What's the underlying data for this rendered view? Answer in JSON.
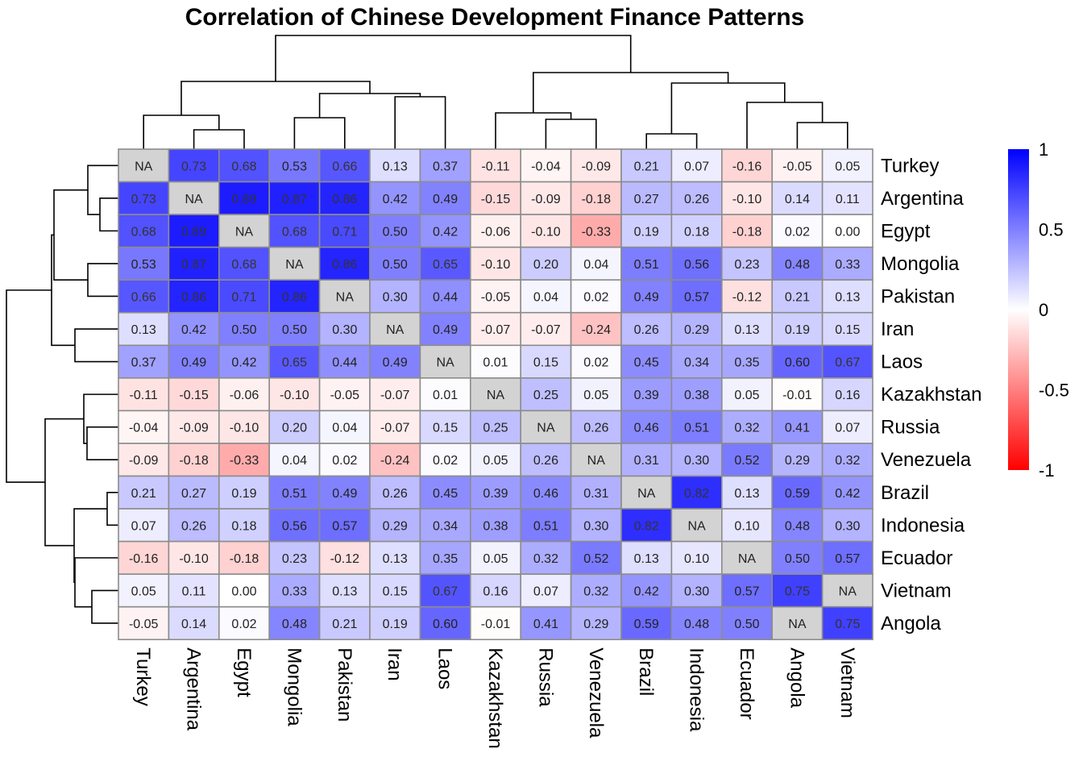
{
  "chart_data": {
    "type": "heatmap",
    "title": "Correlation of Chinese Development Finance Patterns",
    "rows": [
      "Turkey",
      "Argentina",
      "Egypt",
      "Mongolia",
      "Pakistan",
      "Iran",
      "Laos",
      "Kazakhstan",
      "Russia",
      "Venezuela",
      "Brazil",
      "Indonesia",
      "Ecuador",
      "Vietnam",
      "Angola"
    ],
    "columns": [
      "Turkey",
      "Argentina",
      "Egypt",
      "Mongolia",
      "Pakistan",
      "Iran",
      "Laos",
      "Kazakhstan",
      "Russia",
      "Venezuela",
      "Brazil",
      "Indonesia",
      "Ecuador",
      "Angola",
      "Vietnam"
    ],
    "values": [
      [
        null,
        0.73,
        0.68,
        0.53,
        0.66,
        0.13,
        0.37,
        -0.11,
        -0.04,
        -0.09,
        0.21,
        0.07,
        -0.16,
        -0.05,
        0.05
      ],
      [
        0.73,
        null,
        0.89,
        0.87,
        0.86,
        0.42,
        0.49,
        -0.15,
        -0.09,
        -0.18,
        0.27,
        0.26,
        -0.1,
        0.14,
        0.11
      ],
      [
        0.68,
        0.89,
        null,
        0.68,
        0.71,
        0.5,
        0.42,
        -0.06,
        -0.1,
        -0.33,
        0.19,
        0.18,
        -0.18,
        0.02,
        0.0
      ],
      [
        0.53,
        0.87,
        0.68,
        null,
        0.86,
        0.5,
        0.65,
        -0.1,
        0.2,
        0.04,
        0.51,
        0.56,
        0.23,
        0.48,
        0.33
      ],
      [
        0.66,
        0.86,
        0.71,
        0.86,
        null,
        0.3,
        0.44,
        -0.05,
        0.04,
        0.02,
        0.49,
        0.57,
        -0.12,
        0.21,
        0.13
      ],
      [
        0.13,
        0.42,
        0.5,
        0.5,
        0.3,
        null,
        0.49,
        -0.07,
        -0.07,
        -0.24,
        0.26,
        0.29,
        0.13,
        0.19,
        0.15
      ],
      [
        0.37,
        0.49,
        0.42,
        0.65,
        0.44,
        0.49,
        null,
        0.01,
        0.15,
        0.02,
        0.45,
        0.34,
        0.35,
        0.6,
        0.67
      ],
      [
        -0.11,
        -0.15,
        -0.06,
        -0.1,
        -0.05,
        -0.07,
        0.01,
        null,
        0.25,
        0.05,
        0.39,
        0.38,
        0.05,
        -0.01,
        0.16
      ],
      [
        -0.04,
        -0.09,
        -0.1,
        0.2,
        0.04,
        -0.07,
        0.15,
        0.25,
        null,
        0.26,
        0.46,
        0.51,
        0.32,
        0.41,
        0.07
      ],
      [
        -0.09,
        -0.18,
        -0.33,
        0.04,
        0.02,
        -0.24,
        0.02,
        0.05,
        0.26,
        null,
        0.31,
        0.3,
        0.52,
        0.29,
        0.32
      ],
      [
        0.21,
        0.27,
        0.19,
        0.51,
        0.49,
        0.26,
        0.45,
        0.39,
        0.46,
        0.31,
        null,
        0.82,
        0.13,
        0.59,
        0.42
      ],
      [
        0.07,
        0.26,
        0.18,
        0.56,
        0.57,
        0.29,
        0.34,
        0.38,
        0.51,
        0.3,
        0.82,
        null,
        0.1,
        0.48,
        0.3
      ],
      [
        -0.16,
        -0.1,
        -0.18,
        0.23,
        -0.12,
        0.13,
        0.35,
        0.05,
        0.32,
        0.52,
        0.13,
        0.1,
        null,
        0.5,
        0.57
      ],
      [
        0.05,
        0.11,
        0.0,
        0.33,
        0.13,
        0.15,
        0.67,
        0.16,
        0.07,
        0.32,
        0.42,
        0.3,
        0.57,
        0.75,
        null
      ],
      [
        -0.05,
        0.14,
        0.02,
        0.48,
        0.21,
        0.19,
        0.6,
        -0.01,
        0.41,
        0.29,
        0.59,
        0.48,
        0.5,
        null,
        0.75
      ]
    ],
    "missing_label": "NA",
    "color_scale": {
      "low": "#FF0000",
      "mid": "#FFFFFF",
      "high": "#0000FF",
      "min": -1,
      "max": 1,
      "na_color": "#D3D3D3",
      "border_color": "#8C8C8C"
    },
    "legend": {
      "position": "right",
      "ticks": [
        1,
        0.5,
        0,
        -0.5,
        -1
      ],
      "tick_labels": [
        "1",
        "0.5",
        "0",
        "-0.5",
        "-1"
      ]
    },
    "row_dendrogram": [
      [
        1,
        2
      ],
      [
        0,
        -1
      ],
      [
        3,
        4
      ],
      [
        5,
        6
      ],
      [
        -3,
        -4
      ],
      [
        -2,
        -5
      ],
      [
        8,
        9
      ],
      [
        7,
        -7
      ],
      [
        10,
        11
      ],
      [
        13,
        14
      ],
      [
        12,
        -9
      ],
      [
        -8,
        -10
      ],
      [
        -6,
        -11
      ],
      [
        -12,
        -13
      ]
    ],
    "column_dendrogram": [
      [
        1,
        2
      ],
      [
        0,
        -1
      ],
      [
        3,
        4
      ],
      [
        5,
        6
      ],
      [
        -3,
        -4
      ],
      [
        -2,
        -5
      ],
      [
        8,
        9
      ],
      [
        7,
        -7
      ],
      [
        10,
        11
      ],
      [
        13,
        14
      ],
      [
        12,
        -9
      ],
      [
        -8,
        -10
      ],
      [
        -6,
        -11
      ],
      [
        -12,
        -13
      ]
    ]
  }
}
